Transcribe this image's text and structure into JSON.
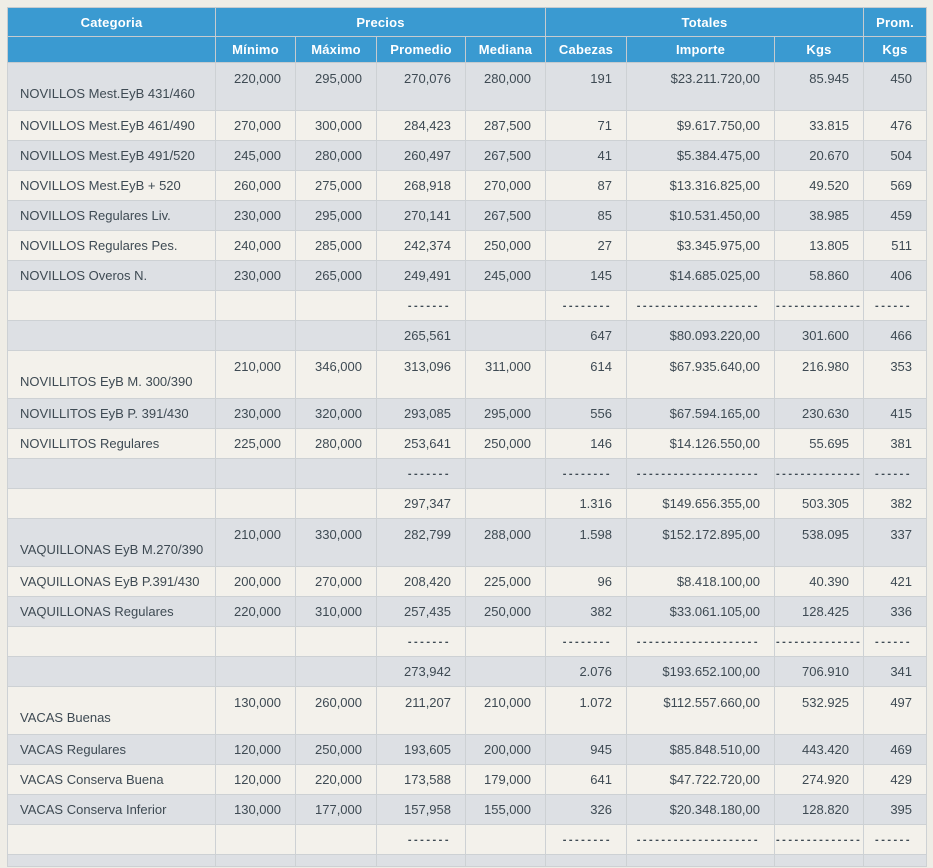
{
  "colors": {
    "header_bg": "#3A9AD1",
    "header_text": "#FFFFFF",
    "row_gray": "#DDE0E4",
    "row_beige": "#F3F1EB",
    "page_bg": "#EFEDE6",
    "text": "#3E4A53",
    "border": "#CDD1D4"
  },
  "table": {
    "header": {
      "categoria": "Categoria",
      "precios": "Precios",
      "totales": "Totales",
      "prom": "Prom.",
      "minimo": "Mínimo",
      "maximo": "Máximo",
      "promedio": "Promedio",
      "mediana": "Mediana",
      "cabezas": "Cabezas",
      "importe": "Importe",
      "kgs": "Kgs",
      "prom_kgs": "Kgs"
    },
    "rows": [
      {
        "type": "data",
        "tall": true,
        "category": "NOVILLOS Mest.EyB 431/460",
        "min": "220,000",
        "max": "295,000",
        "avg": "270,076",
        "med": "280,000",
        "heads": "191",
        "amount": "$23.211.720,00",
        "kgs": "85.945",
        "avg_kgs": "450"
      },
      {
        "type": "data",
        "tall": false,
        "category": "NOVILLOS Mest.EyB 461/490",
        "min": "270,000",
        "max": "300,000",
        "avg": "284,423",
        "med": "287,500",
        "heads": "71",
        "amount": "$9.617.750,00",
        "kgs": "33.815",
        "avg_kgs": "476"
      },
      {
        "type": "data",
        "tall": false,
        "category": "NOVILLOS Mest.EyB 491/520",
        "min": "245,000",
        "max": "280,000",
        "avg": "260,497",
        "med": "267,500",
        "heads": "41",
        "amount": "$5.384.475,00",
        "kgs": "20.670",
        "avg_kgs": "504"
      },
      {
        "type": "data",
        "tall": false,
        "category": "NOVILLOS Mest.EyB + 520",
        "min": "260,000",
        "max": "275,000",
        "avg": "268,918",
        "med": "270,000",
        "heads": "87",
        "amount": "$13.316.825,00",
        "kgs": "49.520",
        "avg_kgs": "569"
      },
      {
        "type": "data",
        "tall": false,
        "category": "NOVILLOS Regulares Liv.",
        "min": "230,000",
        "max": "295,000",
        "avg": "270,141",
        "med": "267,500",
        "heads": "85",
        "amount": "$10.531.450,00",
        "kgs": "38.985",
        "avg_kgs": "459"
      },
      {
        "type": "data",
        "tall": false,
        "category": "NOVILLOS Regulares Pes.",
        "min": "240,000",
        "max": "285,000",
        "avg": "242,374",
        "med": "250,000",
        "heads": "27",
        "amount": "$3.345.975,00",
        "kgs": "13.805",
        "avg_kgs": "511"
      },
      {
        "type": "data",
        "tall": false,
        "category": "NOVILLOS Overos N.",
        "min": "230,000",
        "max": "265,000",
        "avg": "249,491",
        "med": "245,000",
        "heads": "145",
        "amount": "$14.685.025,00",
        "kgs": "58.860",
        "avg_kgs": "406"
      },
      {
        "type": "dashes",
        "tall": false,
        "category": "",
        "min": "",
        "max": "",
        "avg": "-------",
        "med": "",
        "heads": "--------",
        "amount": "--------------------",
        "kgs": "--------------",
        "avg_kgs": "------"
      },
      {
        "type": "subtotal",
        "tall": false,
        "category": "",
        "min": "",
        "max": "",
        "avg": "265,561",
        "med": "",
        "heads": "647",
        "amount": "$80.093.220,00",
        "kgs": "301.600",
        "avg_kgs": "466"
      },
      {
        "type": "data",
        "tall": true,
        "category": "NOVILLITOS EyB M. 300/390",
        "min": "210,000",
        "max": "346,000",
        "avg": "313,096",
        "med": "311,000",
        "heads": "614",
        "amount": "$67.935.640,00",
        "kgs": "216.980",
        "avg_kgs": "353"
      },
      {
        "type": "data",
        "tall": false,
        "category": "NOVILLITOS EyB P. 391/430",
        "min": "230,000",
        "max": "320,000",
        "avg": "293,085",
        "med": "295,000",
        "heads": "556",
        "amount": "$67.594.165,00",
        "kgs": "230.630",
        "avg_kgs": "415"
      },
      {
        "type": "data",
        "tall": false,
        "category": "NOVILLITOS Regulares",
        "min": "225,000",
        "max": "280,000",
        "avg": "253,641",
        "med": "250,000",
        "heads": "146",
        "amount": "$14.126.550,00",
        "kgs": "55.695",
        "avg_kgs": "381"
      },
      {
        "type": "dashes",
        "tall": false,
        "category": "",
        "min": "",
        "max": "",
        "avg": "-------",
        "med": "",
        "heads": "--------",
        "amount": "--------------------",
        "kgs": "--------------",
        "avg_kgs": "------"
      },
      {
        "type": "subtotal",
        "tall": false,
        "category": "",
        "min": "",
        "max": "",
        "avg": "297,347",
        "med": "",
        "heads": "1.316",
        "amount": "$149.656.355,00",
        "kgs": "503.305",
        "avg_kgs": "382"
      },
      {
        "type": "data",
        "tall": true,
        "category": "VAQUILLONAS EyB M.270/390",
        "min": "210,000",
        "max": "330,000",
        "avg": "282,799",
        "med": "288,000",
        "heads": "1.598",
        "amount": "$152.172.895,00",
        "kgs": "538.095",
        "avg_kgs": "337"
      },
      {
        "type": "data",
        "tall": false,
        "category": "VAQUILLONAS EyB P.391/430",
        "min": "200,000",
        "max": "270,000",
        "avg": "208,420",
        "med": "225,000",
        "heads": "96",
        "amount": "$8.418.100,00",
        "kgs": "40.390",
        "avg_kgs": "421"
      },
      {
        "type": "data",
        "tall": false,
        "category": "VAQUILLONAS Regulares",
        "min": "220,000",
        "max": "310,000",
        "avg": "257,435",
        "med": "250,000",
        "heads": "382",
        "amount": "$33.061.105,00",
        "kgs": "128.425",
        "avg_kgs": "336"
      },
      {
        "type": "dashes",
        "tall": false,
        "category": "",
        "min": "",
        "max": "",
        "avg": "-------",
        "med": "",
        "heads": "--------",
        "amount": "--------------------",
        "kgs": "--------------",
        "avg_kgs": "------"
      },
      {
        "type": "subtotal",
        "tall": false,
        "category": "",
        "min": "",
        "max": "",
        "avg": "273,942",
        "med": "",
        "heads": "2.076",
        "amount": "$193.652.100,00",
        "kgs": "706.910",
        "avg_kgs": "341"
      },
      {
        "type": "data",
        "tall": true,
        "category": "VACAS Buenas",
        "min": "130,000",
        "max": "260,000",
        "avg": "211,207",
        "med": "210,000",
        "heads": "1.072",
        "amount": "$112.557.660,00",
        "kgs": "532.925",
        "avg_kgs": "497"
      },
      {
        "type": "data",
        "tall": false,
        "category": "VACAS Regulares",
        "min": "120,000",
        "max": "250,000",
        "avg": "193,605",
        "med": "200,000",
        "heads": "945",
        "amount": "$85.848.510,00",
        "kgs": "443.420",
        "avg_kgs": "469"
      },
      {
        "type": "data",
        "tall": false,
        "category": "VACAS Conserva Buena",
        "min": "120,000",
        "max": "220,000",
        "avg": "173,588",
        "med": "179,000",
        "heads": "641",
        "amount": "$47.722.720,00",
        "kgs": "274.920",
        "avg_kgs": "429"
      },
      {
        "type": "data",
        "tall": false,
        "category": "VACAS Conserva Inferior",
        "min": "130,000",
        "max": "177,000",
        "avg": "157,958",
        "med": "155,000",
        "heads": "326",
        "amount": "$20.348.180,00",
        "kgs": "128.820",
        "avg_kgs": "395"
      },
      {
        "type": "dashes",
        "tall": false,
        "category": "",
        "min": "",
        "max": "",
        "avg": "-------",
        "med": "",
        "heads": "--------",
        "amount": "--------------------",
        "kgs": "--------------",
        "avg_kgs": "------"
      },
      {
        "type": "spacer",
        "tall": false,
        "category": "",
        "min": "",
        "max": "",
        "avg": "",
        "med": "",
        "heads": "",
        "amount": "",
        "kgs": "",
        "avg_kgs": ""
      }
    ]
  }
}
